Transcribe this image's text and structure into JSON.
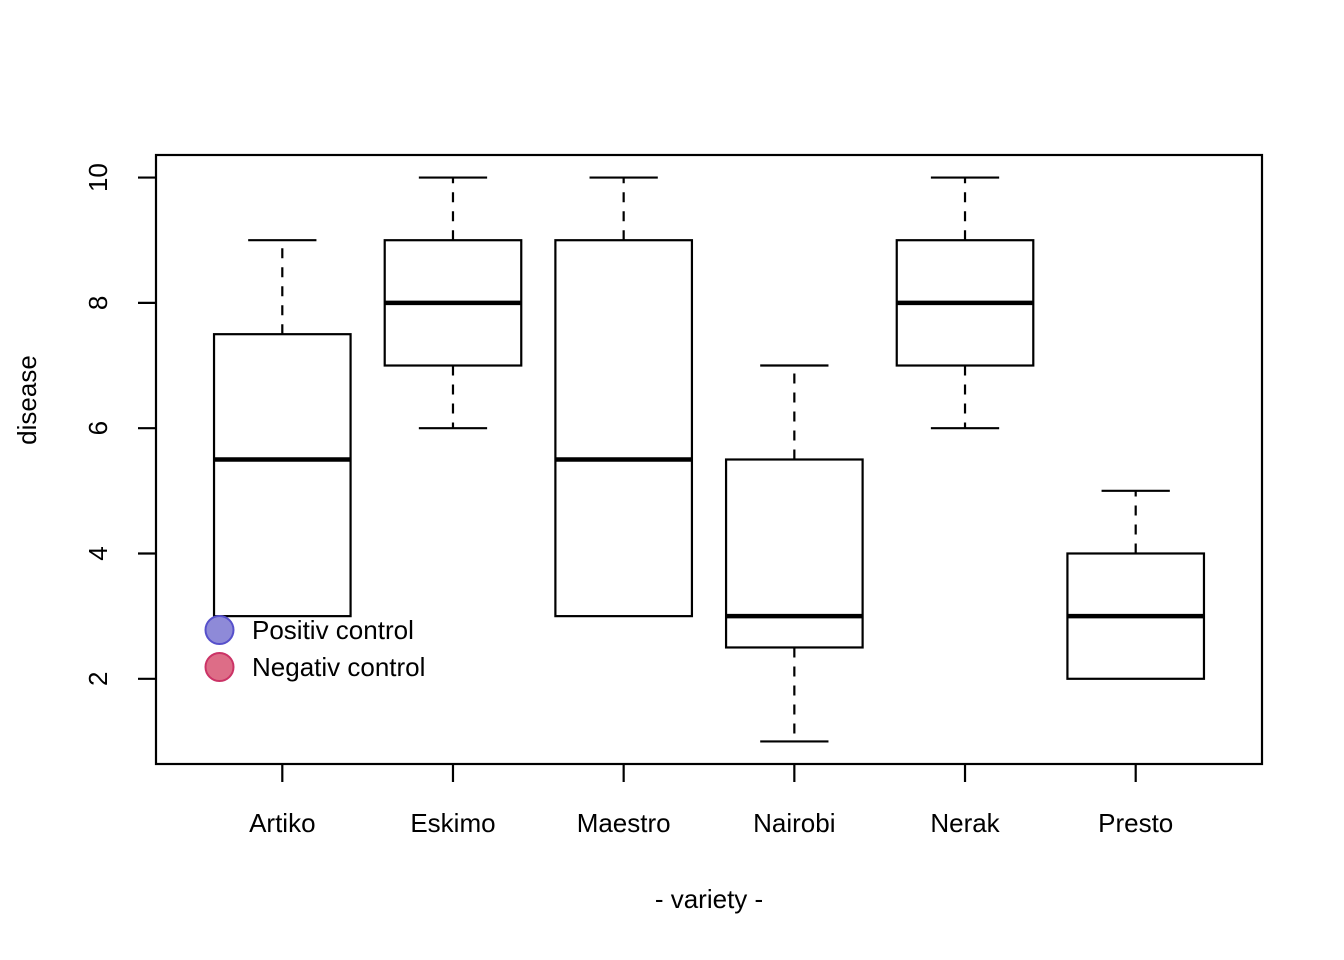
{
  "figure": {
    "background": "#ffffff",
    "text_color": "#000000"
  },
  "chart_data": {
    "type": "boxplot",
    "title": "",
    "xlabel": "- variety -",
    "ylabel": "disease",
    "categories": [
      "Artiko",
      "Eskimo",
      "Maestro",
      "Nairobi",
      "Nerak",
      "Presto"
    ],
    "series": [
      {
        "name": "Artiko",
        "min": 3,
        "q1": 3,
        "median": 5.5,
        "q3": 7.5,
        "max": 9
      },
      {
        "name": "Eskimo",
        "min": 6,
        "q1": 7,
        "median": 8,
        "q3": 9,
        "max": 10
      },
      {
        "name": "Maestro",
        "min": 3,
        "q1": 3,
        "median": 5.5,
        "q3": 9,
        "max": 10
      },
      {
        "name": "Nairobi",
        "min": 1,
        "q1": 2.5,
        "median": 3,
        "q3": 5.5,
        "max": 7
      },
      {
        "name": "Nerak",
        "min": 6,
        "q1": 7,
        "median": 8,
        "q3": 9,
        "max": 10
      },
      {
        "name": "Presto",
        "min": 2,
        "q1": 2,
        "median": 3,
        "q3": 4,
        "max": 5
      }
    ],
    "y_ticks": [
      2,
      4,
      6,
      8,
      10
    ],
    "ylim": [
      0.64,
      10.36
    ],
    "xlim": [
      0.26,
      6.74
    ],
    "grid": false,
    "box_fill": "#ffffff",
    "box_stroke": "#000000",
    "legend": {
      "position": "inside-bottom-left",
      "items": [
        {
          "label": "Positiv control",
          "fill": "#8e8ad8",
          "stroke": "#5650cb"
        },
        {
          "label": "Negativ control",
          "fill": "#dd6d87",
          "stroke": "#cb3366"
        }
      ]
    }
  }
}
